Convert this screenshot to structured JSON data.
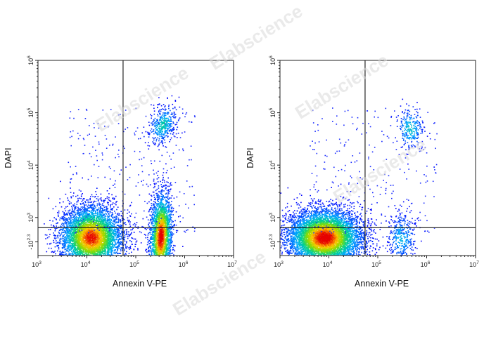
{
  "watermark": "Elabscience",
  "chart_data": [
    {
      "type": "scatter",
      "title": "",
      "xlabel": "Annexin V-PE",
      "ylabel": "DAPI",
      "x_scale": "log",
      "y_scale": "biexponential",
      "xlim": [
        1000,
        10000000
      ],
      "ylim": [
        -200,
        1000000
      ],
      "x_ticks": [
        "10^3",
        "10^4",
        "10^5",
        "10^6",
        "10^7"
      ],
      "y_ticks": [
        "-10^2.3",
        "10^3",
        "10^4",
        "10^5",
        "10^6"
      ],
      "gates": {
        "x": 55000,
        "y": 500
      },
      "grid": false,
      "populations": [
        {
          "name": "",
          "x_center": 12000,
          "y_center": 30,
          "events": 5200
        },
        {
          "name": "",
          "x_center": 320000,
          "y_center": 70,
          "events": 2600
        },
        {
          "name": "",
          "x_center": 350000,
          "y_center": 60000,
          "events": 420
        }
      ]
    },
    {
      "type": "scatter",
      "title": "",
      "xlabel": "Annexin V-PE",
      "ylabel": "DAPI",
      "x_scale": "log",
      "y_scale": "biexponential",
      "xlim": [
        1000,
        10000000
      ],
      "ylim": [
        -200,
        1000000
      ],
      "x_ticks": [
        "10^3",
        "10^4",
        "10^5",
        "10^6",
        "10^7"
      ],
      "y_ticks": [
        "-10^2.3",
        "10^3",
        "10^4",
        "10^5",
        "10^6"
      ],
      "gates": {
        "x": 55000,
        "y": 500
      },
      "grid": false,
      "populations": [
        {
          "name": "",
          "x_center": 8000,
          "y_center": 20,
          "events": 6500
        },
        {
          "name": "",
          "x_center": 300000,
          "y_center": 30,
          "events": 380
        },
        {
          "name": "",
          "x_center": 450000,
          "y_center": 50000,
          "events": 260
        }
      ]
    }
  ]
}
